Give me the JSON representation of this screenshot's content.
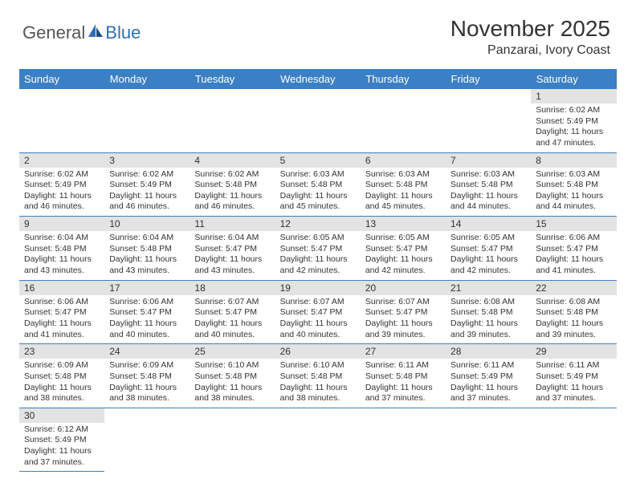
{
  "logo": {
    "text1": "General",
    "text2": "Blue"
  },
  "header": {
    "month": "November 2025",
    "location": "Panzarai, Ivory Coast"
  },
  "colors": {
    "header_bg": "#3b7fc4",
    "daynum_bg": "#e3e3e3",
    "line": "#3b7fc4"
  },
  "weekdays": [
    "Sunday",
    "Monday",
    "Tuesday",
    "Wednesday",
    "Thursday",
    "Friday",
    "Saturday"
  ],
  "weeks": [
    [
      null,
      null,
      null,
      null,
      null,
      null,
      {
        "n": "1",
        "sr": "Sunrise: 6:02 AM",
        "ss": "Sunset: 5:49 PM",
        "d1": "Daylight: 11 hours",
        "d2": "and 47 minutes."
      }
    ],
    [
      {
        "n": "2",
        "sr": "Sunrise: 6:02 AM",
        "ss": "Sunset: 5:49 PM",
        "d1": "Daylight: 11 hours",
        "d2": "and 46 minutes."
      },
      {
        "n": "3",
        "sr": "Sunrise: 6:02 AM",
        "ss": "Sunset: 5:49 PM",
        "d1": "Daylight: 11 hours",
        "d2": "and 46 minutes."
      },
      {
        "n": "4",
        "sr": "Sunrise: 6:02 AM",
        "ss": "Sunset: 5:48 PM",
        "d1": "Daylight: 11 hours",
        "d2": "and 46 minutes."
      },
      {
        "n": "5",
        "sr": "Sunrise: 6:03 AM",
        "ss": "Sunset: 5:48 PM",
        "d1": "Daylight: 11 hours",
        "d2": "and 45 minutes."
      },
      {
        "n": "6",
        "sr": "Sunrise: 6:03 AM",
        "ss": "Sunset: 5:48 PM",
        "d1": "Daylight: 11 hours",
        "d2": "and 45 minutes."
      },
      {
        "n": "7",
        "sr": "Sunrise: 6:03 AM",
        "ss": "Sunset: 5:48 PM",
        "d1": "Daylight: 11 hours",
        "d2": "and 44 minutes."
      },
      {
        "n": "8",
        "sr": "Sunrise: 6:03 AM",
        "ss": "Sunset: 5:48 PM",
        "d1": "Daylight: 11 hours",
        "d2": "and 44 minutes."
      }
    ],
    [
      {
        "n": "9",
        "sr": "Sunrise: 6:04 AM",
        "ss": "Sunset: 5:48 PM",
        "d1": "Daylight: 11 hours",
        "d2": "and 43 minutes."
      },
      {
        "n": "10",
        "sr": "Sunrise: 6:04 AM",
        "ss": "Sunset: 5:48 PM",
        "d1": "Daylight: 11 hours",
        "d2": "and 43 minutes."
      },
      {
        "n": "11",
        "sr": "Sunrise: 6:04 AM",
        "ss": "Sunset: 5:47 PM",
        "d1": "Daylight: 11 hours",
        "d2": "and 43 minutes."
      },
      {
        "n": "12",
        "sr": "Sunrise: 6:05 AM",
        "ss": "Sunset: 5:47 PM",
        "d1": "Daylight: 11 hours",
        "d2": "and 42 minutes."
      },
      {
        "n": "13",
        "sr": "Sunrise: 6:05 AM",
        "ss": "Sunset: 5:47 PM",
        "d1": "Daylight: 11 hours",
        "d2": "and 42 minutes."
      },
      {
        "n": "14",
        "sr": "Sunrise: 6:05 AM",
        "ss": "Sunset: 5:47 PM",
        "d1": "Daylight: 11 hours",
        "d2": "and 42 minutes."
      },
      {
        "n": "15",
        "sr": "Sunrise: 6:06 AM",
        "ss": "Sunset: 5:47 PM",
        "d1": "Daylight: 11 hours",
        "d2": "and 41 minutes."
      }
    ],
    [
      {
        "n": "16",
        "sr": "Sunrise: 6:06 AM",
        "ss": "Sunset: 5:47 PM",
        "d1": "Daylight: 11 hours",
        "d2": "and 41 minutes."
      },
      {
        "n": "17",
        "sr": "Sunrise: 6:06 AM",
        "ss": "Sunset: 5:47 PM",
        "d1": "Daylight: 11 hours",
        "d2": "and 40 minutes."
      },
      {
        "n": "18",
        "sr": "Sunrise: 6:07 AM",
        "ss": "Sunset: 5:47 PM",
        "d1": "Daylight: 11 hours",
        "d2": "and 40 minutes."
      },
      {
        "n": "19",
        "sr": "Sunrise: 6:07 AM",
        "ss": "Sunset: 5:47 PM",
        "d1": "Daylight: 11 hours",
        "d2": "and 40 minutes."
      },
      {
        "n": "20",
        "sr": "Sunrise: 6:07 AM",
        "ss": "Sunset: 5:47 PM",
        "d1": "Daylight: 11 hours",
        "d2": "and 39 minutes."
      },
      {
        "n": "21",
        "sr": "Sunrise: 6:08 AM",
        "ss": "Sunset: 5:48 PM",
        "d1": "Daylight: 11 hours",
        "d2": "and 39 minutes."
      },
      {
        "n": "22",
        "sr": "Sunrise: 6:08 AM",
        "ss": "Sunset: 5:48 PM",
        "d1": "Daylight: 11 hours",
        "d2": "and 39 minutes."
      }
    ],
    [
      {
        "n": "23",
        "sr": "Sunrise: 6:09 AM",
        "ss": "Sunset: 5:48 PM",
        "d1": "Daylight: 11 hours",
        "d2": "and 38 minutes."
      },
      {
        "n": "24",
        "sr": "Sunrise: 6:09 AM",
        "ss": "Sunset: 5:48 PM",
        "d1": "Daylight: 11 hours",
        "d2": "and 38 minutes."
      },
      {
        "n": "25",
        "sr": "Sunrise: 6:10 AM",
        "ss": "Sunset: 5:48 PM",
        "d1": "Daylight: 11 hours",
        "d2": "and 38 minutes."
      },
      {
        "n": "26",
        "sr": "Sunrise: 6:10 AM",
        "ss": "Sunset: 5:48 PM",
        "d1": "Daylight: 11 hours",
        "d2": "and 38 minutes."
      },
      {
        "n": "27",
        "sr": "Sunrise: 6:11 AM",
        "ss": "Sunset: 5:48 PM",
        "d1": "Daylight: 11 hours",
        "d2": "and 37 minutes."
      },
      {
        "n": "28",
        "sr": "Sunrise: 6:11 AM",
        "ss": "Sunset: 5:49 PM",
        "d1": "Daylight: 11 hours",
        "d2": "and 37 minutes."
      },
      {
        "n": "29",
        "sr": "Sunrise: 6:11 AM",
        "ss": "Sunset: 5:49 PM",
        "d1": "Daylight: 11 hours",
        "d2": "and 37 minutes."
      }
    ],
    [
      {
        "n": "30",
        "sr": "Sunrise: 6:12 AM",
        "ss": "Sunset: 5:49 PM",
        "d1": "Daylight: 11 hours",
        "d2": "and 37 minutes."
      },
      null,
      null,
      null,
      null,
      null,
      null
    ]
  ]
}
